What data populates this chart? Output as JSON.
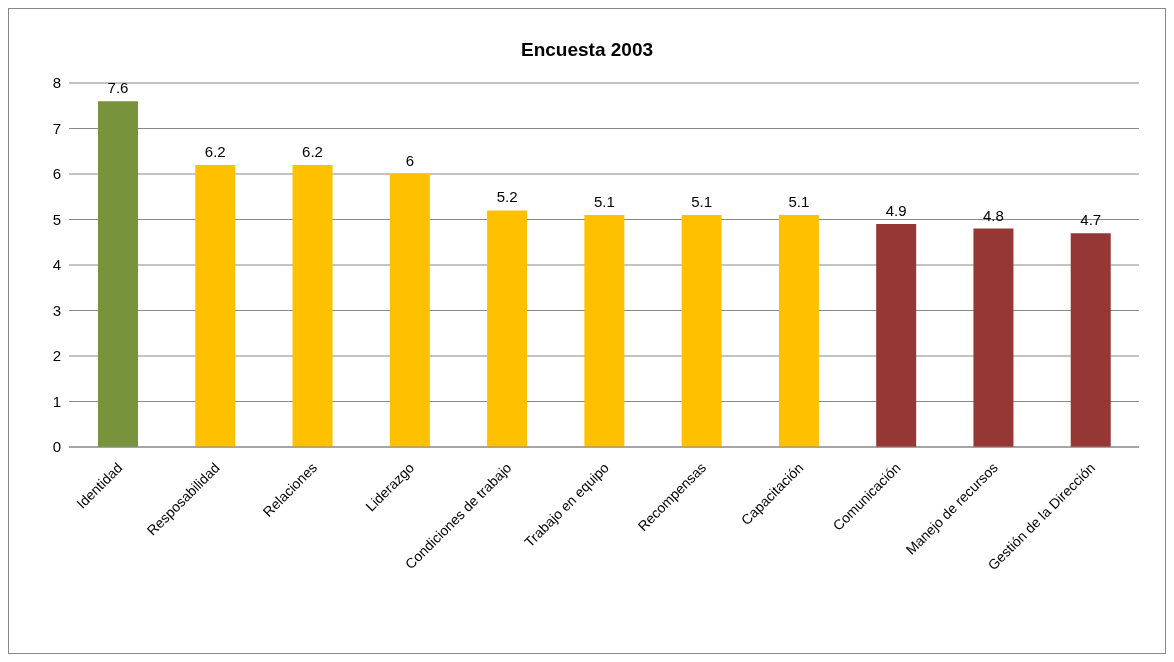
{
  "chart_data": {
    "type": "bar",
    "title": "Encuesta 2003",
    "categories": [
      "Identidad",
      "Resposabilidad",
      "Relaciones",
      "Liderazgo",
      "Condiciones de trabajo",
      "Trabajo en equipo",
      "Recompensas",
      "Capacitación",
      "Comunicación",
      "Manejo de recursos",
      "Gestión de la Dirección"
    ],
    "values": [
      7.6,
      6.2,
      6.2,
      6,
      5.2,
      5.1,
      5.1,
      5.1,
      4.9,
      4.8,
      4.7
    ],
    "colors": [
      "#77933c",
      "#ffc000",
      "#ffc000",
      "#ffc000",
      "#ffc000",
      "#ffc000",
      "#ffc000",
      "#ffc000",
      "#953735",
      "#953735",
      "#953735"
    ],
    "ylim": [
      0,
      8
    ],
    "yticks": [
      0,
      1,
      2,
      3,
      4,
      5,
      6,
      7,
      8
    ],
    "grid": "y",
    "data_labels": true,
    "legend": false
  }
}
